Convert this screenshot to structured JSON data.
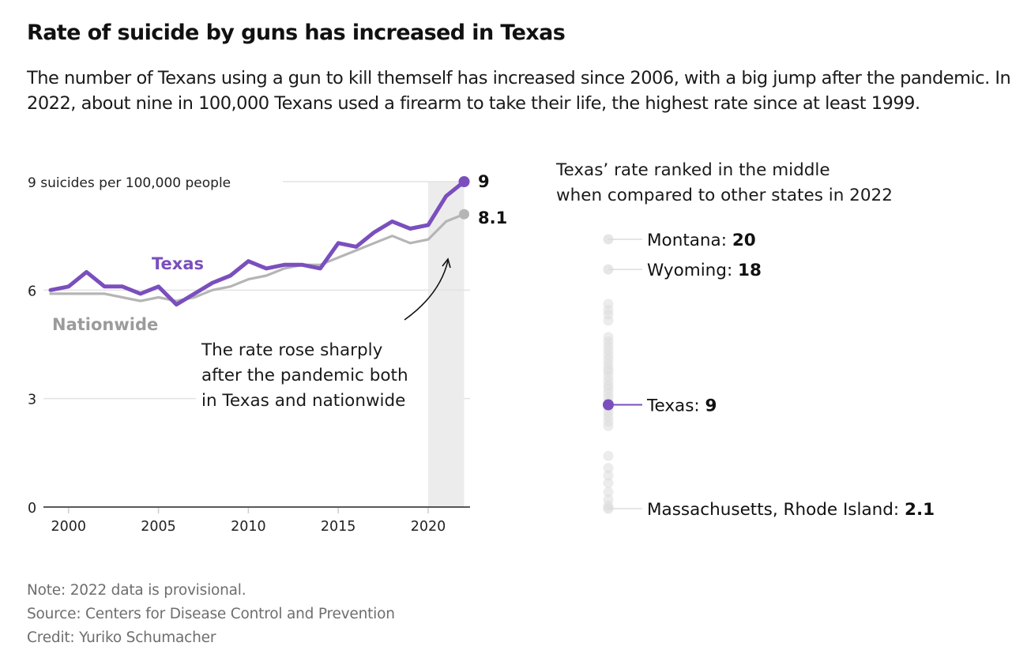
{
  "header": {
    "title": "Rate of suicide by guns has increased in Texas",
    "subtitle": "The number of Texans using a gun to kill themself has increased since 2006, with a big jump after the pandemic. In 2022, about nine in 100,000 Texans used a firearm to take their life, the highest rate since at least 1999."
  },
  "colors": {
    "texas": "#7a4fbd",
    "nationwide": "#b5b5b5",
    "nationwide_label": "#9b9b9b",
    "highlight_band": "#ececec",
    "grid": "#e3e3e3",
    "state_dot": "#dcdcdc"
  },
  "chart_data": [
    {
      "type": "line",
      "title": "",
      "ylabel": "suicides per 100,000 people",
      "y_unit_label": "9 suicides per 100,000 people",
      "ylim": [
        0,
        9
      ],
      "y_ticks": [
        0,
        3,
        6,
        9
      ],
      "y_tick_labels": [
        "0",
        "3",
        "6",
        ""
      ],
      "xlim": [
        1999,
        2022
      ],
      "x_ticks": [
        2000,
        2005,
        2010,
        2015,
        2020
      ],
      "x_tick_labels": [
        "2000",
        "2005",
        "2010",
        "2015",
        "2020"
      ],
      "grid": true,
      "highlight_range": [
        2020,
        2022
      ],
      "x": [
        1999,
        2000,
        2001,
        2002,
        2003,
        2004,
        2005,
        2006,
        2007,
        2008,
        2009,
        2010,
        2011,
        2012,
        2013,
        2014,
        2015,
        2016,
        2017,
        2018,
        2019,
        2020,
        2021,
        2022
      ],
      "series": [
        {
          "name": "Texas",
          "label": "Texas",
          "end_label": "9",
          "values": [
            6.0,
            6.1,
            6.5,
            6.1,
            6.1,
            5.9,
            6.1,
            5.6,
            5.9,
            6.2,
            6.4,
            6.8,
            6.6,
            6.7,
            6.7,
            6.6,
            7.3,
            7.2,
            7.6,
            7.9,
            7.7,
            7.8,
            8.6,
            9.0
          ]
        },
        {
          "name": "Nationwide",
          "label": "Nationwide",
          "end_label": "8.1",
          "values": [
            5.9,
            5.9,
            5.9,
            5.9,
            5.8,
            5.7,
            5.8,
            5.7,
            5.8,
            6.0,
            6.1,
            6.3,
            6.4,
            6.6,
            6.7,
            6.7,
            6.9,
            7.1,
            7.3,
            7.5,
            7.3,
            7.4,
            7.9,
            8.1
          ]
        }
      ],
      "annotation": {
        "lines": [
          "The rate rose sharply",
          "after the pandemic both",
          "in Texas and nationwide"
        ]
      }
    },
    {
      "type": "scatter",
      "title": "Texas’ rate ranked in the middle when compared to other states in 2022",
      "title_lines": [
        "Texas’ rate ranked in the middle",
        "when compared to other states in 2022"
      ],
      "ylim": [
        2.1,
        20
      ],
      "labeled": [
        {
          "name": "Montana",
          "value": 20,
          "value_label": "20",
          "highlight": false
        },
        {
          "name": "Wyoming",
          "value": 18,
          "value_label": "18",
          "highlight": false
        },
        {
          "name": "Texas",
          "value": 9,
          "value_label": "9",
          "highlight": true
        },
        {
          "name": "Massachusetts, Rhode Island",
          "value": 2.1,
          "value_label": "2.1",
          "highlight": false
        }
      ],
      "other_state_values": [
        15.7,
        15.3,
        15.0,
        14.6,
        13.5,
        13.2,
        12.9,
        12.6,
        12.3,
        12.0,
        11.7,
        11.4,
        11.2,
        10.9,
        10.6,
        10.3,
        10.1,
        9.8,
        9.5,
        9.2,
        8.8,
        8.5,
        8.2,
        7.9,
        7.6,
        5.6,
        4.8,
        4.3,
        3.8,
        3.2,
        2.7,
        2.3
      ]
    }
  ],
  "footer": {
    "note": "Note: 2022 data is provisional.",
    "source": "Source: Centers for Disease Control and Prevention",
    "credit": "Credit: Yuriko Schumacher"
  }
}
